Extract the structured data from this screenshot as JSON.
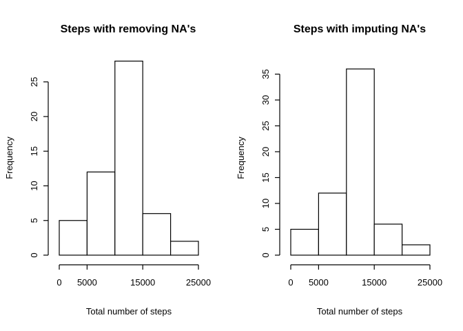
{
  "chart_data": [
    {
      "type": "bar",
      "title": "Steps with removing NA's",
      "xlabel": "Total number of steps",
      "ylabel": "Frequency",
      "bin_edges": [
        0,
        5000,
        10000,
        15000,
        20000,
        25000
      ],
      "values": [
        5,
        12,
        28,
        6,
        2
      ],
      "xlim": [
        0,
        25000
      ],
      "ylim": [
        0,
        28
      ],
      "x_ticks": [
        0,
        5000,
        15000,
        25000
      ],
      "y_ticks": [
        0,
        5,
        10,
        15,
        20,
        25
      ],
      "grid": false
    },
    {
      "type": "bar",
      "title": "Steps with imputing NA's",
      "xlabel": "Total number of steps",
      "ylabel": "Frequency",
      "bin_edges": [
        0,
        5000,
        10000,
        15000,
        20000,
        25000
      ],
      "values": [
        5,
        12,
        36,
        6,
        2
      ],
      "xlim": [
        0,
        25000
      ],
      "ylim": [
        0,
        36
      ],
      "x_ticks": [
        0,
        5000,
        15000,
        25000
      ],
      "y_ticks": [
        0,
        5,
        10,
        15,
        20,
        25,
        30,
        35
      ],
      "grid": false
    }
  ]
}
